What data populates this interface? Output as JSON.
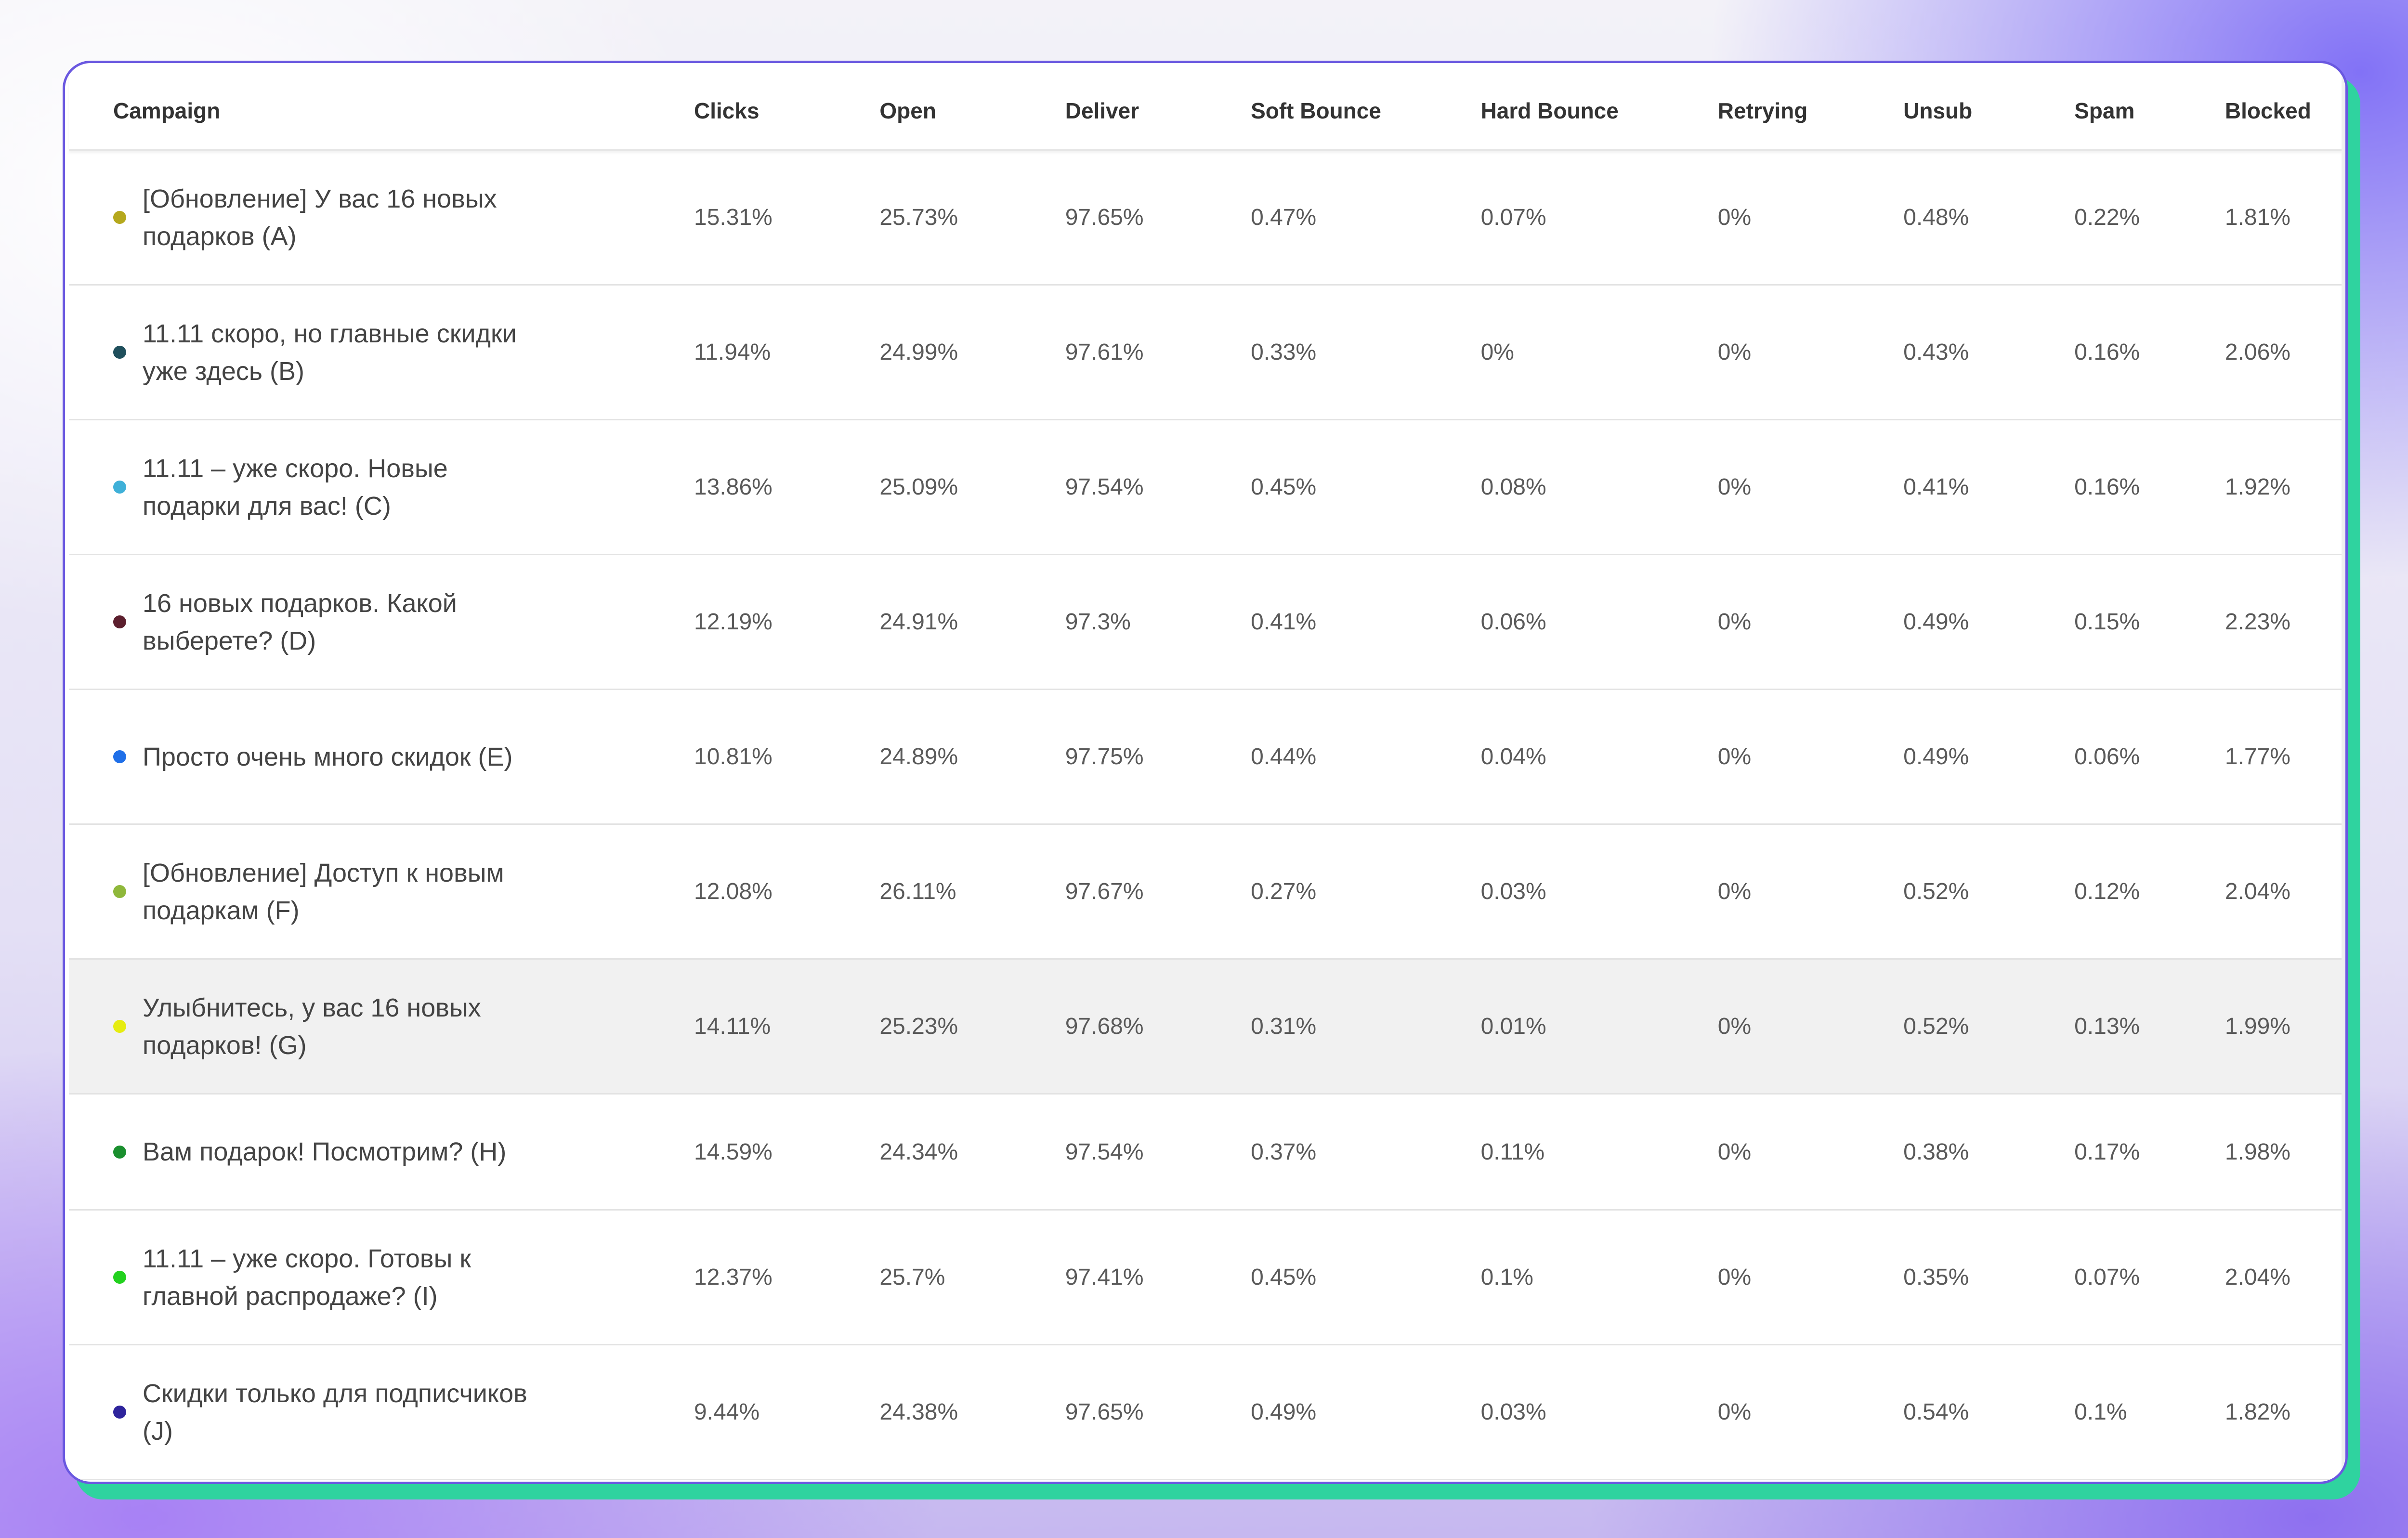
{
  "table": {
    "headers": {
      "campaign": "Campaign",
      "clicks": "Clicks",
      "open": "Open",
      "deliver": "Deliver",
      "soft_bounce": "Soft Bounce",
      "hard_bounce": "Hard Bounce",
      "retrying": "Retrying",
      "unsub": "Unsub",
      "spam": "Spam",
      "blocked": "Blocked"
    },
    "rows": [
      {
        "campaign": "[Обновление] У вас 16 новых подарков (A)",
        "dot_color": "#b5a81d",
        "clicks": "15.31%",
        "open": "25.73%",
        "deliver": "97.65%",
        "soft_bounce": "0.47%",
        "hard_bounce": "0.07%",
        "retrying": "0%",
        "unsub": "0.48%",
        "spam": "0.22%",
        "blocked": "1.81%"
      },
      {
        "campaign": "11.11 скоро, но главные скидки уже здесь (B)",
        "dot_color": "#1f4f5c",
        "clicks": "11.94%",
        "open": "24.99%",
        "deliver": "97.61%",
        "soft_bounce": "0.33%",
        "hard_bounce": "0%",
        "retrying": "0%",
        "unsub": "0.43%",
        "spam": "0.16%",
        "blocked": "2.06%"
      },
      {
        "campaign": "11.11 – уже скоро. Новые подарки для вас! (C)",
        "dot_color": "#3fb0d8",
        "clicks": "13.86%",
        "open": "25.09%",
        "deliver": "97.54%",
        "soft_bounce": "0.45%",
        "hard_bounce": "0.08%",
        "retrying": "0%",
        "unsub": "0.41%",
        "spam": "0.16%",
        "blocked": "1.92%"
      },
      {
        "campaign": "16 новых подарков. Какой выберете? (D)",
        "dot_color": "#5c1f2e",
        "clicks": "12.19%",
        "open": "24.91%",
        "deliver": "97.3%",
        "soft_bounce": "0.41%",
        "hard_bounce": "0.06%",
        "retrying": "0%",
        "unsub": "0.49%",
        "spam": "0.15%",
        "blocked": "2.23%"
      },
      {
        "campaign": "Просто очень много скидок (E)",
        "dot_color": "#1f6fe8",
        "clicks": "10.81%",
        "open": "24.89%",
        "deliver": "97.75%",
        "soft_bounce": "0.44%",
        "hard_bounce": "0.04%",
        "retrying": "0%",
        "unsub": "0.49%",
        "spam": "0.06%",
        "blocked": "1.77%"
      },
      {
        "campaign": "[Обновление] Доступ к новым подаркам (F)",
        "dot_color": "#8fb83b",
        "clicks": "12.08%",
        "open": "26.11%",
        "deliver": "97.67%",
        "soft_bounce": "0.27%",
        "hard_bounce": "0.03%",
        "retrying": "0%",
        "unsub": "0.52%",
        "spam": "0.12%",
        "blocked": "2.04%"
      },
      {
        "campaign": "Улыбнитесь, у вас 16 новых подарков! (G)",
        "dot_color": "#e6ec10",
        "clicks": "14.11%",
        "open": "25.23%",
        "deliver": "97.68%",
        "soft_bounce": "0.31%",
        "hard_bounce": "0.01%",
        "retrying": "0%",
        "unsub": "0.52%",
        "spam": "0.13%",
        "blocked": "1.99%"
      },
      {
        "campaign": "Вам подарок! Посмотрим? (H)",
        "dot_color": "#1a8f2e",
        "clicks": "14.59%",
        "open": "24.34%",
        "deliver": "97.54%",
        "soft_bounce": "0.37%",
        "hard_bounce": "0.11%",
        "retrying": "0%",
        "unsub": "0.38%",
        "spam": "0.17%",
        "blocked": "1.98%"
      },
      {
        "campaign": "11.11 – уже скоро. Готовы к главной распродаже? (I)",
        "dot_color": "#22d11e",
        "clicks": "12.37%",
        "open": "25.7%",
        "deliver": "97.41%",
        "soft_bounce": "0.45%",
        "hard_bounce": "0.1%",
        "retrying": "0%",
        "unsub": "0.35%",
        "spam": "0.07%",
        "blocked": "2.04%"
      },
      {
        "campaign": "Скидки только для подписчиков (J)",
        "dot_color": "#2e249c",
        "clicks": "9.44%",
        "open": "24.38%",
        "deliver": "97.65%",
        "soft_bounce": "0.49%",
        "hard_bounce": "0.03%",
        "retrying": "0%",
        "unsub": "0.54%",
        "spam": "0.1%",
        "blocked": "1.82%"
      }
    ]
  },
  "colors": {
    "frame_border": "#6a58e0",
    "frame_shadow": "#2fd39f",
    "highlight_row": "#f1f1f1"
  }
}
